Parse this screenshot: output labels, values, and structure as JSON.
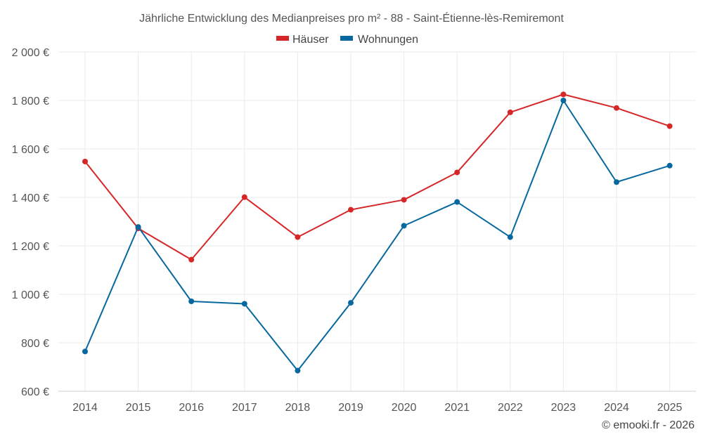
{
  "chart_data": {
    "type": "line",
    "title": "Jährliche Entwicklung des Medianpreises pro m² - 88 - Saint-Étienne-lès-Remiremont",
    "categories": [
      "2014",
      "2015",
      "2016",
      "2017",
      "2018",
      "2019",
      "2020",
      "2021",
      "2022",
      "2023",
      "2024",
      "2025"
    ],
    "series": [
      {
        "name": "Häuser",
        "color": "#d62728",
        "values": [
          1548,
          1272,
          1143,
          1401,
          1236,
          1349,
          1390,
          1503,
          1751,
          1825,
          1769,
          1694
        ]
      },
      {
        "name": "Wohnungen",
        "color": "#07689f",
        "values": [
          764,
          1278,
          971,
          961,
          685,
          965,
          1283,
          1381,
          1236,
          1800,
          1463,
          1531
        ]
      }
    ],
    "ylim": [
      600,
      2000
    ],
    "yticks": [
      600,
      800,
      1000,
      1200,
      1400,
      1600,
      1800,
      2000
    ],
    "ytick_labels": [
      "600 €",
      "800 €",
      "1 000 €",
      "1 200 €",
      "1 400 €",
      "1 600 €",
      "1 800 €",
      "2 000 €"
    ],
    "xlabel": "",
    "ylabel": "",
    "grid": true,
    "legend": "top-center"
  },
  "credit": "© emooki.fr - 2026"
}
